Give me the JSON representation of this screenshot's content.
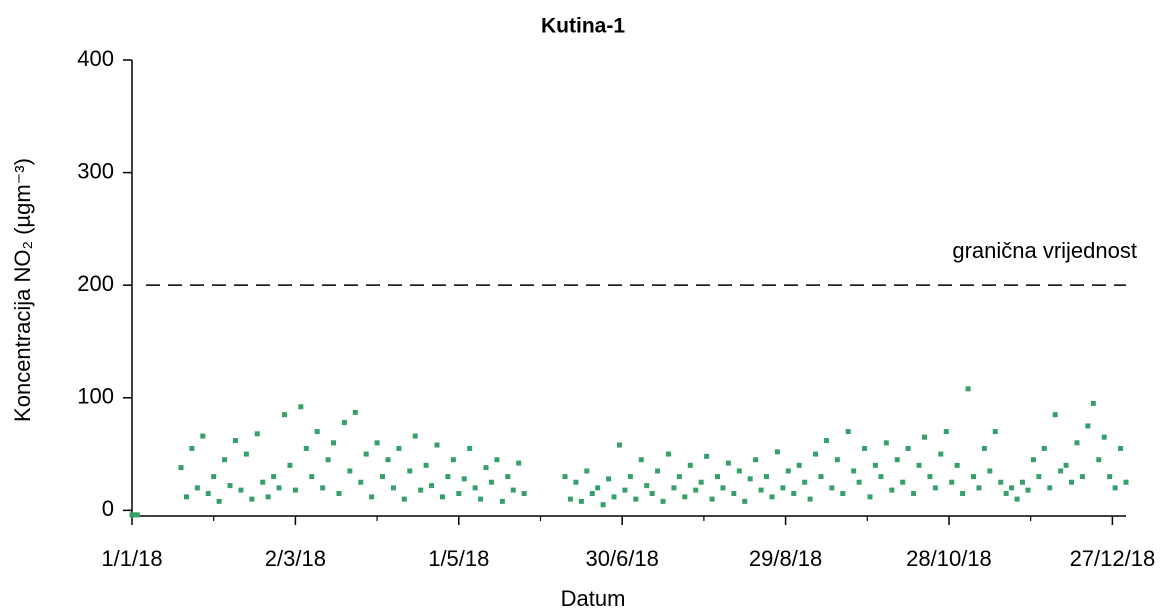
{
  "chart_data": {
    "type": "scatter",
    "title": "Kutina-1",
    "xlabel": "Datum",
    "ylabel": "Koncentracija NO₂ (µgm⁻³)",
    "annotation": {
      "text": "granična vrijednost",
      "value": 200
    },
    "xlim": [
      0,
      365
    ],
    "ylim": [
      -5,
      400
    ],
    "xticks": [
      {
        "value": 0,
        "label": "1/1/18"
      },
      {
        "value": 60,
        "label": "2/3/18"
      },
      {
        "value": 120,
        "label": "1/5/18"
      },
      {
        "value": 180,
        "label": "30/6/18"
      },
      {
        "value": 240,
        "label": "29/8/18"
      },
      {
        "value": 300,
        "label": "28/10/18"
      },
      {
        "value": 360,
        "label": "27/12/18"
      }
    ],
    "xminor_ticks": [
      30,
      90,
      150,
      210,
      270,
      330
    ],
    "yticks": [
      0,
      100,
      200,
      300,
      400
    ],
    "series": [
      {
        "color": "#36a06a",
        "x": [
          0,
          1,
          2,
          18,
          20,
          22,
          24,
          26,
          28,
          30,
          32,
          34,
          36,
          38,
          40,
          42,
          44,
          46,
          48,
          50,
          52,
          54,
          56,
          58,
          60,
          62,
          64,
          66,
          68,
          70,
          72,
          74,
          76,
          78,
          80,
          82,
          84,
          86,
          88,
          90,
          92,
          94,
          96,
          98,
          100,
          102,
          104,
          106,
          108,
          110,
          112,
          114,
          116,
          118,
          120,
          122,
          124,
          126,
          128,
          130,
          132,
          134,
          136,
          138,
          140,
          142,
          144,
          159,
          161,
          163,
          165,
          167,
          169,
          171,
          173,
          175,
          177,
          179,
          181,
          183,
          185,
          187,
          189,
          191,
          193,
          195,
          197,
          199,
          201,
          203,
          205,
          207,
          209,
          211,
          213,
          215,
          217,
          219,
          221,
          223,
          225,
          227,
          229,
          231,
          233,
          235,
          237,
          239,
          241,
          243,
          245,
          247,
          249,
          251,
          253,
          255,
          257,
          259,
          261,
          263,
          265,
          267,
          269,
          271,
          273,
          275,
          277,
          279,
          281,
          283,
          285,
          287,
          289,
          291,
          293,
          295,
          297,
          299,
          301,
          303,
          305,
          307,
          309,
          311,
          313,
          315,
          317,
          319,
          321,
          323,
          325,
          327,
          329,
          331,
          333,
          335,
          337,
          339,
          341,
          343,
          345,
          347,
          349,
          351,
          353,
          355,
          357,
          359,
          361,
          363,
          365
        ],
        "values": [
          -4,
          -4,
          -4,
          38,
          12,
          55,
          20,
          66,
          15,
          30,
          8,
          45,
          22,
          62,
          18,
          50,
          10,
          68,
          25,
          12,
          30,
          20,
          85,
          40,
          18,
          92,
          55,
          30,
          70,
          20,
          45,
          60,
          15,
          78,
          35,
          87,
          25,
          50,
          12,
          60,
          30,
          45,
          20,
          55,
          10,
          35,
          66,
          18,
          40,
          22,
          58,
          12,
          30,
          45,
          15,
          28,
          55,
          20,
          10,
          38,
          25,
          45,
          8,
          30,
          18,
          42,
          15,
          30,
          10,
          25,
          8,
          35,
          15,
          20,
          5,
          28,
          12,
          58,
          18,
          30,
          10,
          45,
          22,
          15,
          35,
          8,
          50,
          20,
          30,
          12,
          40,
          18,
          25,
          48,
          10,
          30,
          20,
          42,
          15,
          35,
          8,
          28,
          45,
          18,
          30,
          12,
          52,
          20,
          35,
          15,
          40,
          25,
          10,
          50,
          30,
          62,
          20,
          45,
          15,
          70,
          35,
          25,
          55,
          12,
          40,
          30,
          60,
          18,
          45,
          25,
          55,
          15,
          40,
          65,
          30,
          20,
          50,
          70,
          25,
          40,
          15,
          108,
          30,
          20,
          55,
          35,
          70,
          25,
          15,
          20,
          10,
          25,
          18,
          45,
          30,
          55,
          20,
          85,
          35,
          40,
          25,
          60,
          30,
          75,
          95,
          45,
          65,
          30,
          20,
          55,
          25
        ]
      }
    ]
  }
}
